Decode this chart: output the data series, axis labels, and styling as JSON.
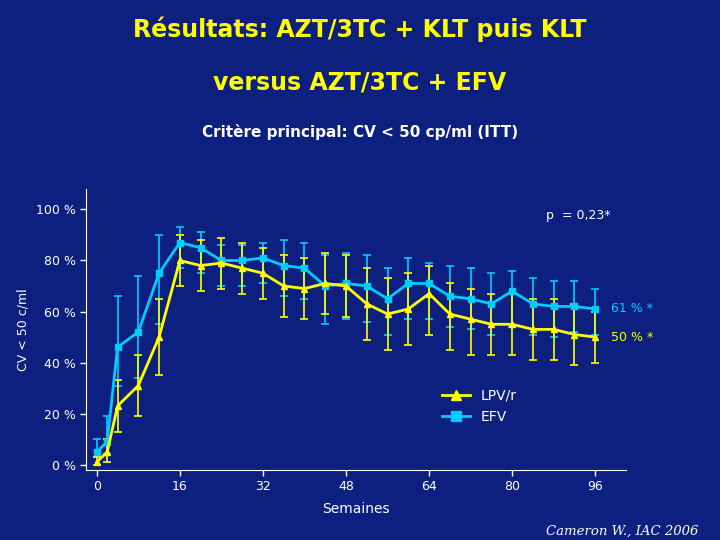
{
  "title_line1": "Résultats: AZT/3TC + KLT puis KLT",
  "title_line2": "versus AZT/3TC + EFV",
  "subtitle": "Critère principal: CV < 50 cp/ml (ITT)",
  "xlabel": "Semaines",
  "ylabel": "CV < 50 c/ml",
  "background_color": "#0d2080",
  "title_color": "#ffff00",
  "subtitle_color": "#ffffff",
  "axis_color": "#ffffff",
  "annotation_p": "p  = 0,23*",
  "annotation_61": "61 % *",
  "annotation_50": "50 % *",
  "annotation_61_color": "#00ccff",
  "annotation_50_color": "#ffff00",
  "annotation_p_color": "#ffffff",
  "footer": "Cameron W., IAC 2006",
  "footer_color": "#ffffff",
  "xticks": [
    0,
    16,
    32,
    48,
    64,
    80,
    96
  ],
  "yticks": [
    0,
    20,
    40,
    60,
    80,
    100
  ],
  "ytick_labels": [
    "0 %",
    "20 %",
    "40 %",
    "60 %",
    "80 %",
    "100 %"
  ],
  "ylim": [
    -2,
    108
  ],
  "xlim": [
    -2,
    102
  ],
  "lpvr_x": [
    0,
    2,
    4,
    8,
    12,
    16,
    20,
    24,
    28,
    32,
    36,
    40,
    44,
    48,
    52,
    56,
    60,
    64,
    68,
    72,
    76,
    80,
    84,
    88,
    92,
    96
  ],
  "lpvr_y": [
    1,
    5,
    23,
    31,
    50,
    80,
    78,
    79,
    77,
    75,
    70,
    69,
    71,
    70,
    63,
    59,
    61,
    67,
    59,
    57,
    55,
    55,
    53,
    53,
    51,
    50
  ],
  "lpvr_err_lo": [
    1,
    4,
    10,
    12,
    15,
    10,
    10,
    10,
    10,
    10,
    12,
    12,
    12,
    12,
    14,
    14,
    14,
    16,
    14,
    14,
    12,
    12,
    12,
    12,
    12,
    10
  ],
  "lpvr_err_hi": [
    2,
    5,
    10,
    12,
    15,
    10,
    10,
    10,
    10,
    10,
    12,
    12,
    12,
    12,
    14,
    14,
    14,
    11,
    12,
    12,
    12,
    12,
    12,
    12,
    12,
    10
  ],
  "lpvr_color": "#ffff00",
  "efv_x": [
    0,
    2,
    4,
    8,
    12,
    16,
    20,
    24,
    28,
    32,
    36,
    40,
    44,
    48,
    52,
    56,
    60,
    64,
    68,
    72,
    76,
    80,
    84,
    88,
    92,
    96
  ],
  "efv_y": [
    5,
    9,
    46,
    52,
    75,
    87,
    85,
    80,
    80,
    81,
    78,
    77,
    70,
    71,
    70,
    65,
    71,
    71,
    66,
    65,
    63,
    68,
    63,
    62,
    62,
    61
  ],
  "efv_err_lo": [
    2,
    5,
    15,
    18,
    20,
    10,
    10,
    10,
    10,
    10,
    12,
    12,
    15,
    14,
    14,
    14,
    14,
    14,
    12,
    12,
    12,
    14,
    12,
    12,
    10,
    10
  ],
  "efv_err_hi": [
    5,
    10,
    20,
    22,
    15,
    6,
    6,
    6,
    6,
    6,
    10,
    10,
    12,
    12,
    12,
    12,
    10,
    8,
    12,
    12,
    12,
    8,
    10,
    10,
    10,
    8
  ],
  "efv_color": "#00ccff",
  "legend_lpvr": "LPV/r",
  "legend_efv": "EFV",
  "legend_color_lpvr": "#ffff00",
  "legend_color_efv": "#00ccff",
  "legend_text_color": "#ffffff"
}
